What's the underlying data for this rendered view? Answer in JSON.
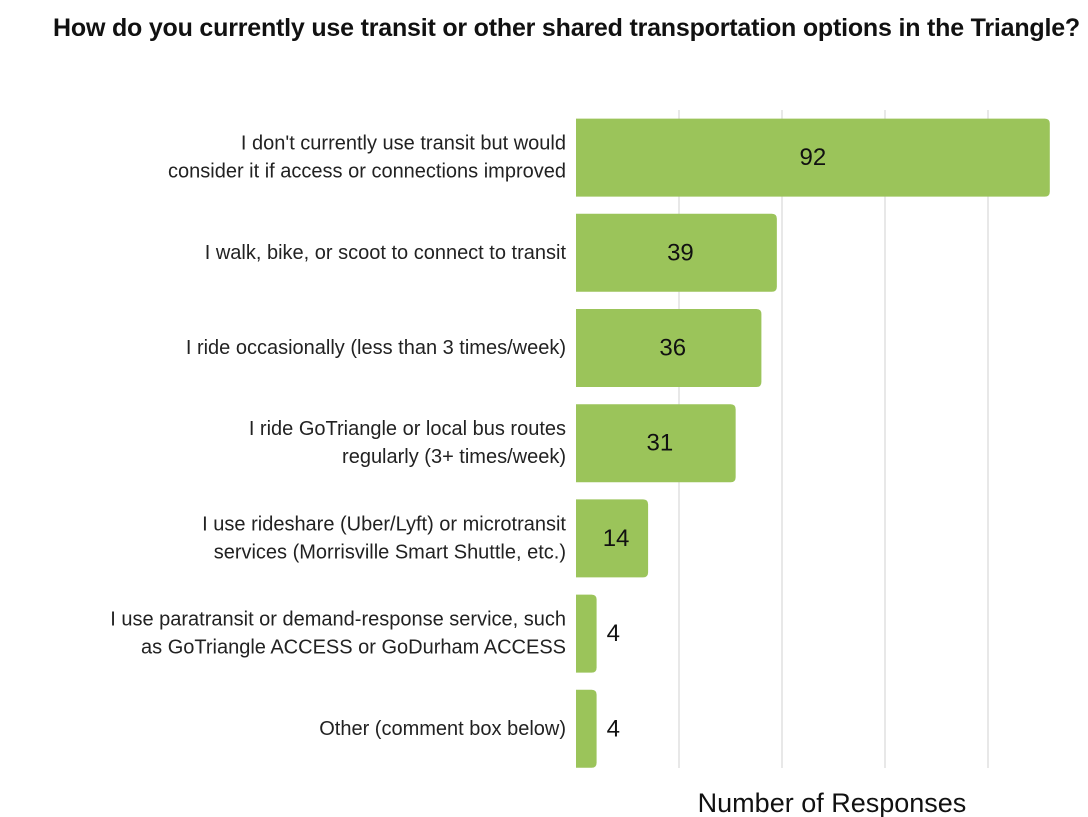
{
  "chart_data": {
    "type": "bar",
    "orientation": "horizontal",
    "title": "How do you currently use transit or other shared transportation options in the Triangle?",
    "xlabel": "Number of Responses",
    "ylabel": "",
    "categories": [
      [
        "I don't currently use transit but would",
        "consider it if access or connections improved"
      ],
      [
        "I walk, bike, or scoot to connect to transit"
      ],
      [
        "I ride occasionally (less than 3 times/week)"
      ],
      [
        "I ride GoTriangle or local bus routes",
        "regularly (3+ times/week)"
      ],
      [
        "I use rideshare (Uber/Lyft) or microtransit",
        "services (Morrisville Smart Shuttle, etc.)"
      ],
      [
        "I use paratransit or demand-response service, such",
        "as GoTriangle ACCESS or GoDurham ACCESS"
      ],
      [
        "Other (comment box below)"
      ]
    ],
    "values": [
      92,
      39,
      36,
      31,
      14,
      4,
      4
    ],
    "xlim": [
      0,
      100
    ],
    "grid": true,
    "data_labels": true,
    "bar_color": "#9BC45A",
    "gridline_color": "#d9d9d9"
  }
}
